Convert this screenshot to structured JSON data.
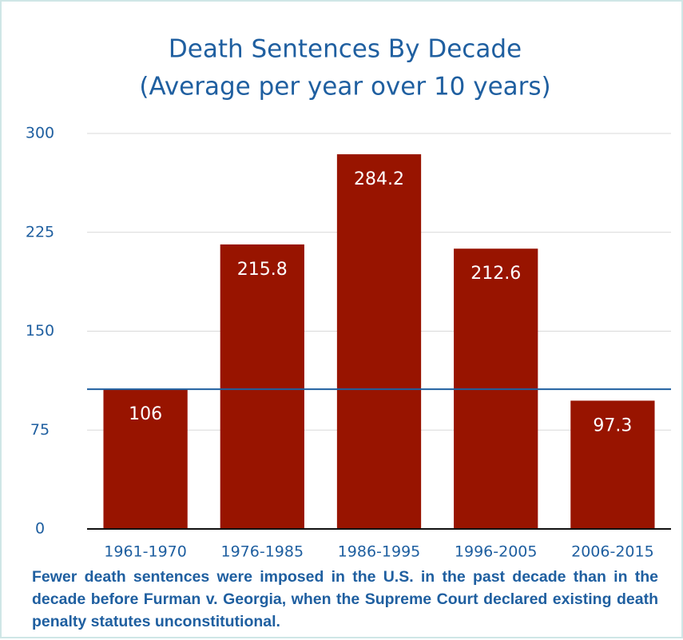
{
  "chart_data": {
    "type": "bar",
    "title": "Death Sentences By Decade",
    "subtitle": "(Average per year over 10 years)",
    "categories": [
      "1961-1970",
      "1976-1985",
      "1986-1995",
      "1996-2005",
      "2006-2015"
    ],
    "values": [
      106,
      215.8,
      284.2,
      212.6,
      97.3
    ],
    "color": "#981400",
    "ylim": [
      0,
      300
    ],
    "yticks": [
      0,
      75,
      150,
      225,
      300
    ],
    "grid": true,
    "caption": "Fewer death sentences were imposed in the U.S. in the past decade than in the decade before Furman v. Georgia, when the Supreme Court declared existing death penalty statutes unconstitutional."
  }
}
